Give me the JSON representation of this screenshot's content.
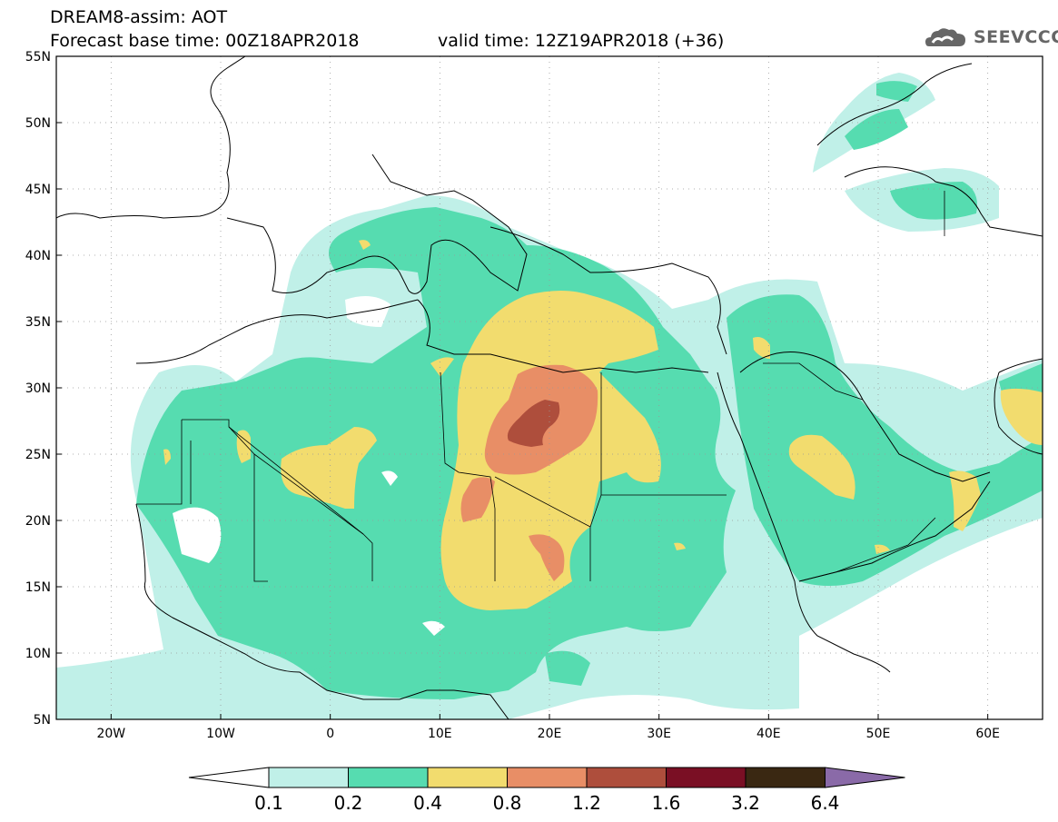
{
  "header": {
    "title": "DREAM8-assim: AOT",
    "base_time": "Forecast base time: 00Z18APR2018",
    "valid_time": "valid time: 12Z19APR2018 (+36)",
    "logo_text": "SEEVCCC",
    "logo_icon": "cloud-icon"
  },
  "map": {
    "lon_range": [
      -25,
      65
    ],
    "lat_range": [
      5,
      55
    ],
    "lat_ticks": [
      {
        "value": 55,
        "label": "55N"
      },
      {
        "value": 50,
        "label": "50N"
      },
      {
        "value": 45,
        "label": "45N"
      },
      {
        "value": 40,
        "label": "40N"
      },
      {
        "value": 35,
        "label": "35N"
      },
      {
        "value": 30,
        "label": "30N"
      },
      {
        "value": 25,
        "label": "25N"
      },
      {
        "value": 20,
        "label": "20N"
      },
      {
        "value": 15,
        "label": "15N"
      },
      {
        "value": 10,
        "label": "10N"
      },
      {
        "value": 5,
        "label": "5N"
      }
    ],
    "lon_ticks": [
      {
        "value": -20,
        "label": "20W"
      },
      {
        "value": -10,
        "label": "10W"
      },
      {
        "value": 0,
        "label": "0"
      },
      {
        "value": 10,
        "label": "10E"
      },
      {
        "value": 20,
        "label": "20E"
      },
      {
        "value": 30,
        "label": "30E"
      },
      {
        "value": 40,
        "label": "40E"
      },
      {
        "value": 50,
        "label": "50E"
      },
      {
        "value": 60,
        "label": "60E"
      }
    ],
    "grid": "dotted"
  },
  "colorbar": {
    "colors": [
      "#c0f0e8",
      "#56dcb0",
      "#f2dc6e",
      "#e88e66",
      "#ae4e3c",
      "#7a0f24",
      "#3a2812",
      "#8a6aa8"
    ],
    "labels": [
      "0.1",
      "0.2",
      "0.4",
      "0.8",
      "1.2",
      "1.6",
      "3.2",
      "6.4"
    ]
  }
}
